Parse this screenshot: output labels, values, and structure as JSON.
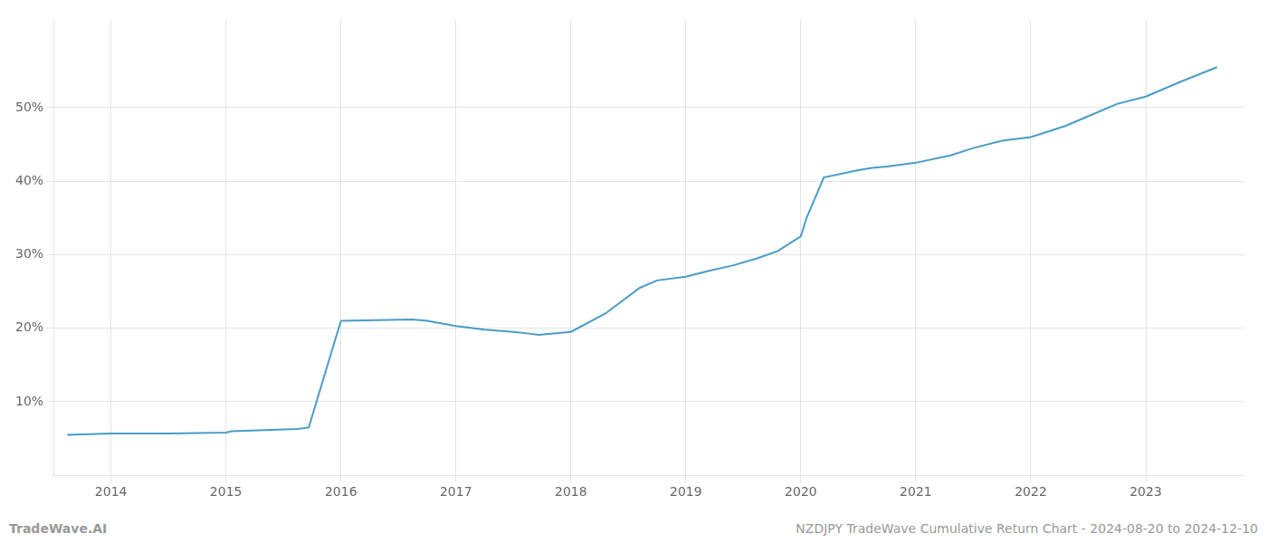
{
  "chart_data": {
    "type": "line",
    "x": [
      2013.62,
      2014.0,
      2014.5,
      2015.0,
      2015.05,
      2015.62,
      2015.72,
      2016.0,
      2016.62,
      2016.75,
      2017.0,
      2017.25,
      2017.5,
      2017.62,
      2017.72,
      2018.0,
      2018.3,
      2018.6,
      2018.75,
      2019.0,
      2019.2,
      2019.4,
      2019.62,
      2019.8,
      2020.0,
      2020.05,
      2020.2,
      2020.5,
      2020.62,
      2020.75,
      2021.0,
      2021.3,
      2021.5,
      2021.75,
      2022.0,
      2022.3,
      2022.6,
      2022.75,
      2023.0,
      2023.3,
      2023.62
    ],
    "values": [
      5.5,
      5.7,
      5.7,
      5.8,
      6.0,
      6.3,
      6.5,
      21.0,
      21.2,
      21.0,
      20.3,
      19.8,
      19.5,
      19.3,
      19.1,
      19.5,
      22.0,
      25.5,
      26.5,
      27.0,
      27.8,
      28.5,
      29.5,
      30.5,
      32.5,
      35.0,
      40.5,
      41.5,
      41.8,
      42.0,
      42.5,
      43.5,
      44.5,
      45.5,
      46.0,
      47.5,
      49.5,
      50.5,
      51.5,
      53.5,
      55.5
    ],
    "color": "#4a9cc7",
    "xlim": [
      2013.5,
      2023.85
    ],
    "ylim": [
      0,
      62
    ],
    "xticks": [
      2014,
      2015,
      2016,
      2017,
      2018,
      2019,
      2020,
      2021,
      2022,
      2023
    ],
    "yticks": [
      {
        "value": 10,
        "label": "10%"
      },
      {
        "value": 20,
        "label": "20%"
      },
      {
        "value": 30,
        "label": "30%"
      },
      {
        "value": 40,
        "label": "40%"
      },
      {
        "value": 50,
        "label": "50%"
      }
    ],
    "grid": true,
    "annotations": [
      "TradeWave.AI",
      "NZDJPY TradeWave Cumulative Return Chart - 2024-08-20 to 2024-12-10"
    ]
  }
}
